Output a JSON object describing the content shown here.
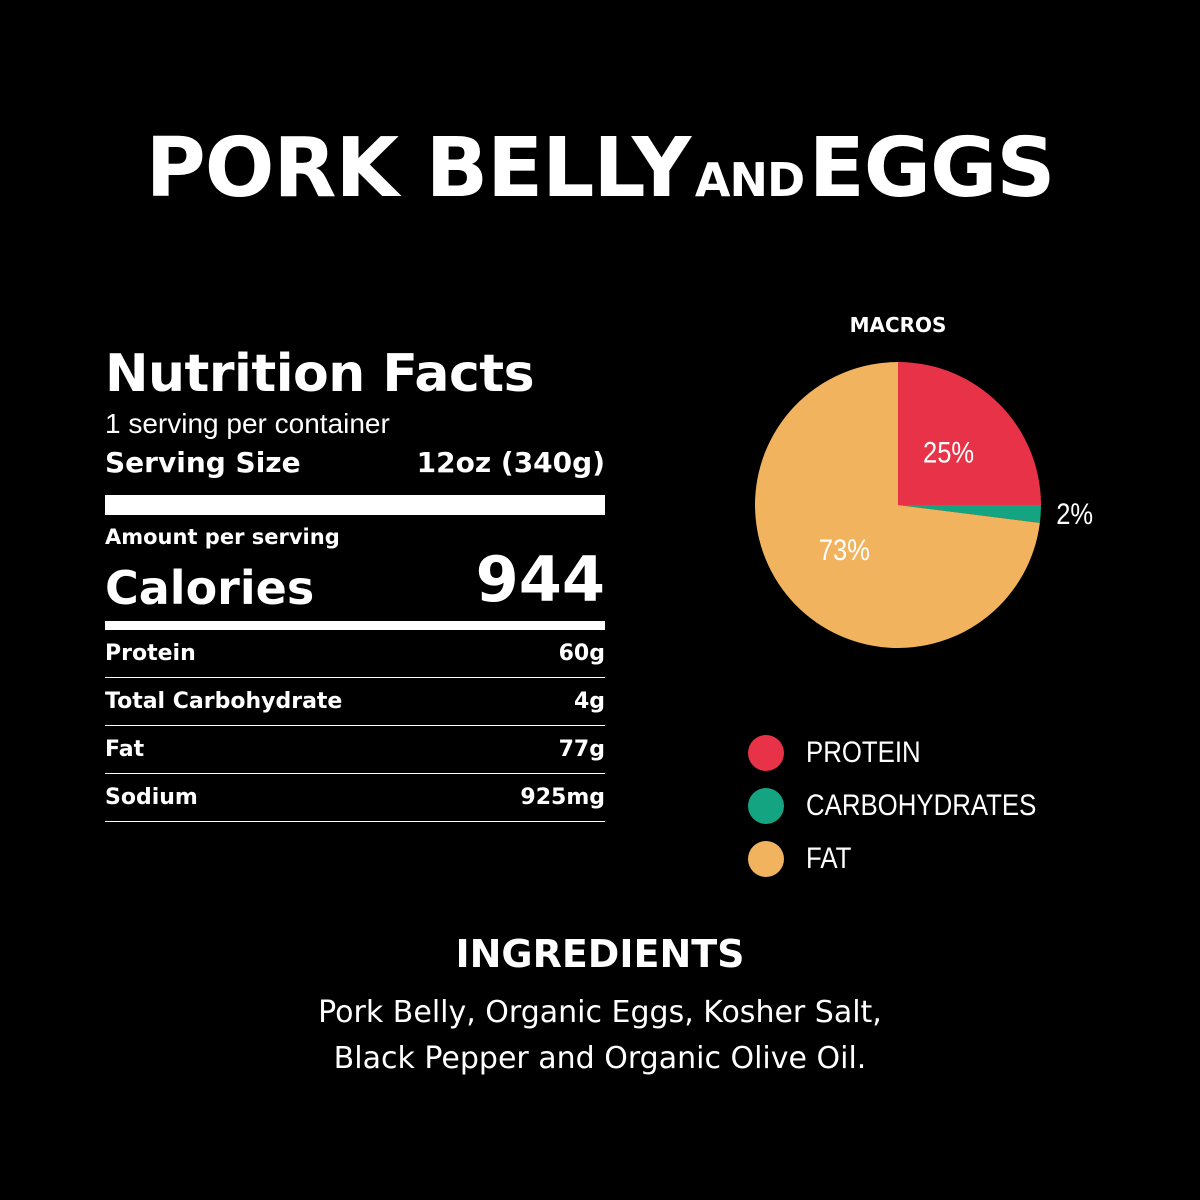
{
  "header": {
    "title_part1": "PORK BELLY",
    "title_part2": "AND",
    "title_part3": "EGGS"
  },
  "nutrition": {
    "heading": "Nutrition Facts",
    "servings": "1 serving per container",
    "serving_size_label": "Serving Size",
    "serving_size_value": "12oz (340g)",
    "amount_label": "Amount per serving",
    "calories_label": "Calories",
    "calories_value": "944",
    "rows": [
      {
        "label": "Protein",
        "value": "60g"
      },
      {
        "label": "Total Carbohydrate",
        "value": "4g"
      },
      {
        "label": "Fat",
        "value": "77g"
      },
      {
        "label": "Sodium",
        "value": "925mg"
      }
    ]
  },
  "chart_data": {
    "type": "pie",
    "title": "MACROS",
    "slices": [
      {
        "name": "PROTEIN",
        "value": 25,
        "label": "25%",
        "color": "#e83247"
      },
      {
        "name": "CARBOHYDRATES",
        "value": 2,
        "label": "2%",
        "color": "#14a481"
      },
      {
        "name": "FAT",
        "value": 73,
        "label": "73%",
        "color": "#f2b35f"
      }
    ],
    "legend_position": "bottom"
  },
  "ingredients": {
    "title": "INGREDIENTS",
    "line1": "Pork Belly, Organic Eggs, Kosher Salt,",
    "line2": "Black Pepper and Organic Olive Oil."
  }
}
